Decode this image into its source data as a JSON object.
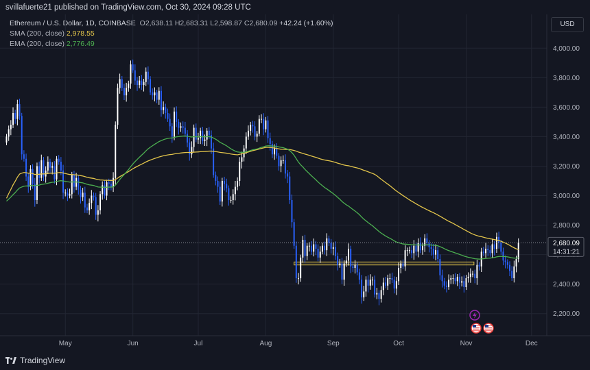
{
  "header": {
    "published": "svillafuerte21 published on TradingView.com, Oct 30, 2024 09:28 UTC"
  },
  "legend": {
    "symbol": "Ethereum / U.S. Dollar, 1D, COINBASE",
    "open": "O2,638.11",
    "high": "H2,683.31",
    "low": "L2,598.87",
    "close": "C2,680.09",
    "change": "+42.24 (+1.60%)",
    "sma_label": "SMA (200, close)",
    "sma_value": "2,978.55",
    "ema_label": "EMA (200, close)",
    "ema_value": "2,776.49"
  },
  "currency": "USD",
  "footer": {
    "brand": "TradingView"
  },
  "price_tag": {
    "price": "2,680.09",
    "countdown": "14:31:21"
  },
  "colors": {
    "up": "#ffffff",
    "down": "#2962ff",
    "sma": "#e3c54b",
    "ema": "#4caf50",
    "zone": "#e3c54b",
    "background": "#141722"
  },
  "icons": [
    "lightning-event-icon",
    "us-flag-event-icon",
    "us-flag-event-icon"
  ],
  "chart_data": {
    "type": "candlestick",
    "title": "Ethereum / U.S. Dollar, 1D, COINBASE",
    "y_ticks": [
      "2,200.00",
      "2,400.00",
      "2,600.00",
      "2,800.00",
      "3,000.00",
      "3,200.00",
      "3,400.00",
      "3,600.00",
      "3,800.00",
      "4,000.00"
    ],
    "y_range": [
      2050,
      4050
    ],
    "x_ticks": [
      "May",
      "Jun",
      "Jul",
      "Aug",
      "Sep",
      "Oct",
      "Nov",
      "Dec"
    ],
    "x_range": [
      "2024-04-01",
      "2024-12-08"
    ],
    "grid": true,
    "support_zone": [
      2530,
      2550
    ],
    "last_price": 2680.09,
    "closes": [
      3400,
      3450,
      3480,
      3560,
      3520,
      3620,
      3540,
      3280,
      3250,
      3130,
      3060,
      3180,
      3080,
      2970,
      3200,
      3120,
      3240,
      3130,
      3170,
      3230,
      3190,
      3200,
      3110,
      3250,
      3230,
      3170,
      3020,
      3020,
      3000,
      3010,
      3140,
      3060,
      3120,
      3040,
      2990,
      3020,
      2920,
      2900,
      2950,
      3000,
      2990,
      2870,
      2900,
      3010,
      3070,
      3000,
      3090,
      3080,
      3060,
      3120,
      3480,
      3730,
      3790,
      3730,
      3680,
      3730,
      3760,
      3890,
      3850,
      3780,
      3750,
      3780,
      3750,
      3770,
      3840,
      3790,
      3700,
      3680,
      3700,
      3650,
      3710,
      3580,
      3600,
      3560,
      3520,
      3470,
      3400,
      3570,
      3500,
      3460,
      3470,
      3460,
      3420,
      3360,
      3280,
      3330,
      3460,
      3380,
      3390,
      3440,
      3370,
      3380,
      3440,
      3410,
      3320,
      3140,
      3100,
      3060,
      2960,
      3100,
      3080,
      3050,
      2970,
      2970,
      3010,
      3060,
      3100,
      3230,
      3260,
      3320,
      3400,
      3440,
      3480,
      3470,
      3400,
      3420,
      3520,
      3520,
      3450,
      3510,
      3390,
      3350,
      3280,
      3320,
      3270,
      3200,
      3240,
      3240,
      3150,
      3130,
      2970,
      2820,
      2660,
      2440,
      2440,
      2580,
      2700,
      2590,
      2660,
      2660,
      2620,
      2670,
      2640,
      2580,
      2620,
      2660,
      2630,
      2710,
      2680,
      2640,
      2650,
      2590,
      2530,
      2540,
      2430,
      2540,
      2560,
      2640,
      2520,
      2510,
      2530,
      2480,
      2430,
      2310,
      2350,
      2430,
      2390,
      2430,
      2430,
      2330,
      2340,
      2300,
      2360,
      2410,
      2390,
      2440,
      2440,
      2430,
      2370,
      2420,
      2510,
      2540,
      2520,
      2630,
      2630,
      2630,
      2610,
      2660,
      2620,
      2680,
      2630,
      2660,
      2710,
      2680,
      2650,
      2640,
      2600,
      2630,
      2570,
      2460,
      2420,
      2390,
      2380,
      2430,
      2440,
      2440,
      2420,
      2450,
      2410,
      2420,
      2380,
      2440,
      2450,
      2470,
      2470,
      2440,
      2530,
      2520,
      2620,
      2610,
      2640,
      2630,
      2610,
      2670,
      2640,
      2720,
      2680,
      2620,
      2560,
      2550,
      2530,
      2490,
      2440,
      2520,
      2570,
      2680
    ]
  }
}
